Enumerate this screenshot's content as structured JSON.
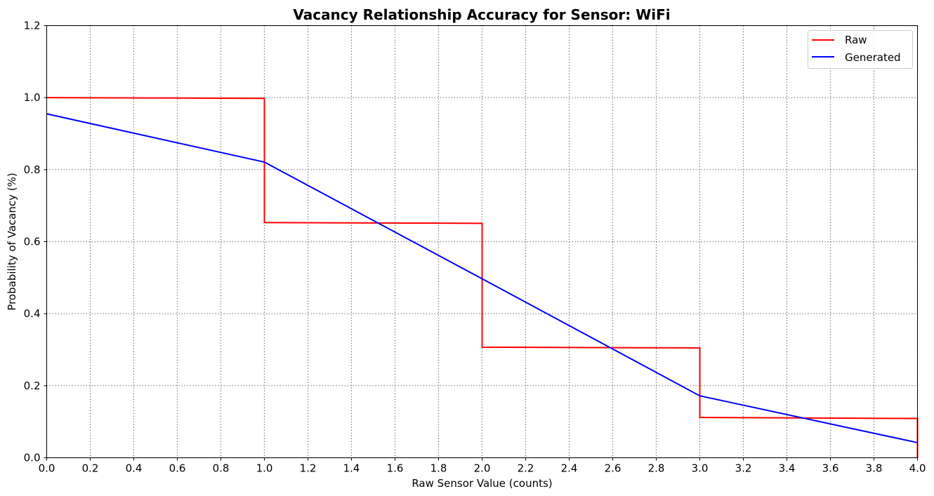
{
  "chart_data": {
    "type": "line",
    "title": "Vacancy Relationship Accuracy for Sensor: WiFi",
    "xlabel": "Raw Sensor Value (counts)",
    "ylabel": "Probability of Vacancy (%)",
    "xlim": [
      0,
      4
    ],
    "ylim": [
      0,
      1.2
    ],
    "xticks": [
      "0.0",
      "0.2",
      "0.4",
      "0.6",
      "0.8",
      "1.0",
      "1.2",
      "1.4",
      "1.6",
      "1.8",
      "2.0",
      "2.2",
      "2.4",
      "2.6",
      "2.8",
      "3.0",
      "3.2",
      "3.4",
      "3.6",
      "3.8",
      "4.0"
    ],
    "yticks": [
      "0.0",
      "0.2",
      "0.4",
      "0.6",
      "0.8",
      "1.0",
      "1.2"
    ],
    "grid": true,
    "legend_position": "top-right",
    "series": [
      {
        "name": "Raw",
        "color": "#ff0000",
        "x": [
          0.0,
          1.0,
          1.0,
          2.0,
          2.0,
          3.0,
          3.0,
          4.0,
          4.0
        ],
        "y": [
          1.0,
          0.998,
          0.653,
          0.651,
          0.307,
          0.305,
          0.112,
          0.109,
          0.0
        ]
      },
      {
        "name": "Generated",
        "color": "#0000ff",
        "x": [
          0.0,
          1.0,
          2.0,
          3.0,
          4.0
        ],
        "y": [
          0.955,
          0.821,
          0.497,
          0.172,
          0.042
        ]
      }
    ]
  }
}
